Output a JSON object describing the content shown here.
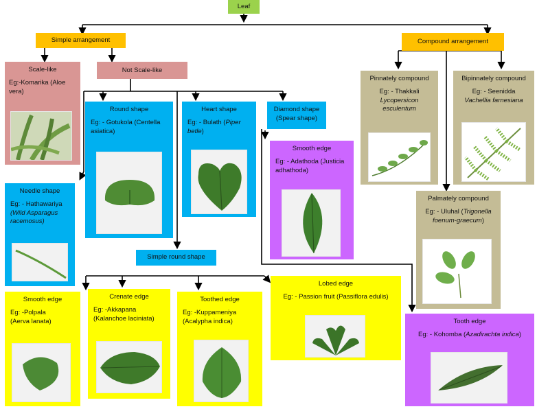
{
  "root": "Leaf",
  "simple": "Simple arrangement",
  "compound": "Compound arrangement",
  "scale": {
    "title": "Scale-like",
    "eg": "Eg:-Komarika (Aloe vera)"
  },
  "not_scale": "Not Scale-like",
  "round": {
    "title": "Round shape",
    "eg": "Eg: - Gotukola (Centella asiatica)"
  },
  "heart": {
    "title": "Heart shape",
    "eg_prefix": "Eg: - Bulath (",
    "eg_italic": "Piper betle",
    "eg_suffix": ")"
  },
  "diamond": {
    "line1": "Diamond shape",
    "line2": "(Spear shape)"
  },
  "needle": {
    "title": "Needle shape",
    "eg": "Eg: - Hathawariya",
    "sci": "(Wild Asparagus racemosus)"
  },
  "smooth_diamond": {
    "title": "Smooth edge",
    "eg": "Eg: - Adathoda (Justicia adhathoda)"
  },
  "simple_round": "Simple round shape",
  "smooth": {
    "title": "Smooth edge",
    "eg": "Eg: -Polpala",
    "sci": "(Aerva lanata)"
  },
  "crenate": {
    "title": "Crenate edge",
    "eg": "Eg: -Akkapana",
    "sci": "(Kalanchoe laciniata)"
  },
  "toothed": {
    "title": "Toothed edge",
    "eg": "Eg: -Kuppameniya",
    "sci": "(Acalypha indica)"
  },
  "lobed": {
    "title": "Lobed edge",
    "eg": "Eg: - Passion fruit (Passiflora edulis)"
  },
  "pinnate": {
    "title": "Pinnately compound",
    "eg": "Eg: - Thakkali",
    "sci": "Lycopersicon esculentum"
  },
  "bipinnate": {
    "title": "Bipinnately compound",
    "eg": "Eg: - Seenidda",
    "sci": "Vachellia farnesiana"
  },
  "palmate": {
    "title": "Palmately compound",
    "eg": "Eg: - Uluhal (",
    "sci": "Trigonella foenum-graecum",
    "suffix": ")"
  },
  "tooth": {
    "title": "Tooth edge",
    "eg": "Eg: - Kohomba (",
    "sci": "Azadirachta indica",
    "suffix": ")"
  },
  "colors": {
    "root": "#9bd24c",
    "arrangement": "#ffc000",
    "scale": "#d99694",
    "shape": "#00b0f0",
    "compound": "#c4bc96",
    "violet": "#cc66ff",
    "edge": "#ffff00",
    "leaf": "#3f7f2a"
  }
}
